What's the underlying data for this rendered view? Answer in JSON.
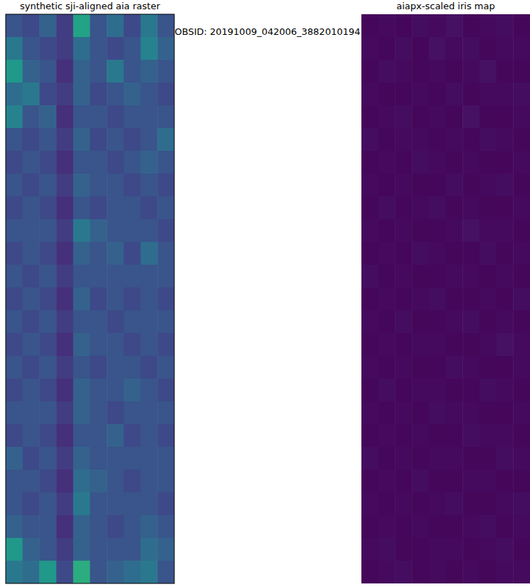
{
  "title": "OBSID: 20191009_042006_3882010194",
  "chart_data": [
    {
      "type": "heatmap",
      "title": "synthetic sji-aligned aia raster",
      "tick_labels": false,
      "color_range": [
        0,
        1
      ],
      "cells": [
        [
          0.3,
          0.25,
          0.35,
          0.2,
          0.65,
          0.3,
          0.4,
          0.25,
          0.45,
          0.3
        ],
        [
          0.45,
          0.3,
          0.25,
          0.2,
          0.4,
          0.3,
          0.25,
          0.3,
          0.5,
          0.35
        ],
        [
          0.6,
          0.35,
          0.3,
          0.15,
          0.35,
          0.3,
          0.45,
          0.3,
          0.35,
          0.3
        ],
        [
          0.4,
          0.45,
          0.25,
          0.2,
          0.35,
          0.25,
          0.3,
          0.35,
          0.3,
          0.25
        ],
        [
          0.5,
          0.3,
          0.35,
          0.15,
          0.3,
          0.3,
          0.25,
          0.3,
          0.3,
          0.3
        ],
        [
          0.3,
          0.25,
          0.3,
          0.2,
          0.35,
          0.25,
          0.3,
          0.25,
          0.3,
          0.4
        ],
        [
          0.25,
          0.3,
          0.25,
          0.15,
          0.3,
          0.3,
          0.25,
          0.3,
          0.35,
          0.3
        ],
        [
          0.3,
          0.25,
          0.3,
          0.2,
          0.35,
          0.3,
          0.3,
          0.25,
          0.3,
          0.25
        ],
        [
          0.25,
          0.3,
          0.25,
          0.15,
          0.3,
          0.25,
          0.3,
          0.3,
          0.25,
          0.3
        ],
        [
          0.3,
          0.3,
          0.3,
          0.2,
          0.45,
          0.35,
          0.3,
          0.3,
          0.3,
          0.25
        ],
        [
          0.25,
          0.3,
          0.25,
          0.15,
          0.35,
          0.3,
          0.35,
          0.25,
          0.4,
          0.3
        ],
        [
          0.3,
          0.25,
          0.3,
          0.2,
          0.3,
          0.3,
          0.3,
          0.3,
          0.3,
          0.3
        ],
        [
          0.25,
          0.3,
          0.25,
          0.15,
          0.35,
          0.25,
          0.3,
          0.25,
          0.3,
          0.25
        ],
        [
          0.3,
          0.25,
          0.3,
          0.2,
          0.3,
          0.3,
          0.25,
          0.3,
          0.3,
          0.3
        ],
        [
          0.25,
          0.3,
          0.25,
          0.15,
          0.35,
          0.3,
          0.3,
          0.25,
          0.3,
          0.25
        ],
        [
          0.3,
          0.25,
          0.3,
          0.2,
          0.3,
          0.25,
          0.3,
          0.3,
          0.25,
          0.3
        ],
        [
          0.25,
          0.3,
          0.25,
          0.15,
          0.35,
          0.3,
          0.3,
          0.35,
          0.3,
          0.25
        ],
        [
          0.3,
          0.3,
          0.3,
          0.2,
          0.35,
          0.3,
          0.25,
          0.3,
          0.3,
          0.3
        ],
        [
          0.25,
          0.3,
          0.25,
          0.15,
          0.3,
          0.3,
          0.35,
          0.25,
          0.3,
          0.25
        ],
        [
          0.35,
          0.25,
          0.3,
          0.2,
          0.35,
          0.3,
          0.3,
          0.3,
          0.3,
          0.3
        ],
        [
          0.3,
          0.3,
          0.25,
          0.15,
          0.4,
          0.35,
          0.3,
          0.25,
          0.3,
          0.3
        ],
        [
          0.3,
          0.25,
          0.3,
          0.2,
          0.45,
          0.3,
          0.3,
          0.3,
          0.3,
          0.25
        ],
        [
          0.35,
          0.3,
          0.3,
          0.15,
          0.35,
          0.3,
          0.25,
          0.3,
          0.35,
          0.3
        ],
        [
          0.6,
          0.35,
          0.3,
          0.2,
          0.35,
          0.3,
          0.3,
          0.3,
          0.4,
          0.35
        ],
        [
          0.45,
          0.4,
          0.6,
          0.25,
          0.7,
          0.3,
          0.35,
          0.4,
          0.45,
          0.3
        ]
      ]
    },
    {
      "type": "heatmap",
      "title": "aiapx-scaled iris map",
      "tick_labels": false,
      "color_range": [
        0,
        1
      ],
      "cells": [
        [
          0.02,
          0.03,
          0.02,
          0.04,
          0.03,
          0.05,
          0.02,
          0.03,
          0.04,
          0.02
        ],
        [
          0.03,
          0.02,
          0.04,
          0.02,
          0.05,
          0.03,
          0.04,
          0.02,
          0.03,
          0.03
        ],
        [
          0.02,
          0.04,
          0.03,
          0.02,
          0.03,
          0.02,
          0.03,
          0.05,
          0.02,
          0.02
        ],
        [
          0.03,
          0.02,
          0.02,
          0.03,
          0.02,
          0.04,
          0.02,
          0.03,
          0.03,
          0.04
        ],
        [
          0.02,
          0.03,
          0.04,
          0.02,
          0.03,
          0.02,
          0.05,
          0.02,
          0.02,
          0.03
        ],
        [
          0.04,
          0.02,
          0.03,
          0.03,
          0.02,
          0.03,
          0.02,
          0.04,
          0.03,
          0.02
        ],
        [
          0.02,
          0.03,
          0.02,
          0.04,
          0.03,
          0.02,
          0.03,
          0.02,
          0.02,
          0.03
        ],
        [
          0.03,
          0.02,
          0.03,
          0.02,
          0.02,
          0.04,
          0.02,
          0.03,
          0.04,
          0.02
        ],
        [
          0.02,
          0.04,
          0.02,
          0.03,
          0.04,
          0.02,
          0.03,
          0.02,
          0.02,
          0.03
        ],
        [
          0.03,
          0.02,
          0.03,
          0.02,
          0.02,
          0.03,
          0.05,
          0.03,
          0.03,
          0.02
        ],
        [
          0.02,
          0.03,
          0.02,
          0.04,
          0.03,
          0.02,
          0.02,
          0.04,
          0.02,
          0.03
        ],
        [
          0.04,
          0.02,
          0.03,
          0.02,
          0.02,
          0.03,
          0.03,
          0.02,
          0.03,
          0.02
        ],
        [
          0.02,
          0.03,
          0.02,
          0.03,
          0.04,
          0.02,
          0.02,
          0.03,
          0.02,
          0.04
        ],
        [
          0.03,
          0.02,
          0.04,
          0.02,
          0.02,
          0.03,
          0.04,
          0.02,
          0.03,
          0.02
        ],
        [
          0.02,
          0.03,
          0.02,
          0.03,
          0.03,
          0.02,
          0.02,
          0.03,
          0.05,
          0.03
        ],
        [
          0.03,
          0.02,
          0.03,
          0.02,
          0.02,
          0.04,
          0.03,
          0.02,
          0.02,
          0.03
        ],
        [
          0.02,
          0.04,
          0.02,
          0.03,
          0.03,
          0.02,
          0.02,
          0.04,
          0.03,
          0.02
        ],
        [
          0.03,
          0.02,
          0.03,
          0.02,
          0.04,
          0.03,
          0.03,
          0.02,
          0.02,
          0.03
        ],
        [
          0.02,
          0.03,
          0.02,
          0.03,
          0.02,
          0.02,
          0.04,
          0.03,
          0.03,
          0.02
        ],
        [
          0.04,
          0.02,
          0.03,
          0.02,
          0.03,
          0.03,
          0.02,
          0.02,
          0.04,
          0.03
        ],
        [
          0.02,
          0.03,
          0.02,
          0.04,
          0.02,
          0.02,
          0.03,
          0.03,
          0.02,
          0.02
        ],
        [
          0.03,
          0.02,
          0.03,
          0.02,
          0.03,
          0.04,
          0.02,
          0.02,
          0.03,
          0.04
        ],
        [
          0.02,
          0.03,
          0.02,
          0.03,
          0.02,
          0.02,
          0.03,
          0.04,
          0.02,
          0.03
        ],
        [
          0.03,
          0.04,
          0.02,
          0.02,
          0.03,
          0.03,
          0.02,
          0.03,
          0.04,
          0.02
        ],
        [
          0.02,
          0.03,
          0.04,
          0.02,
          0.03,
          0.02,
          0.03,
          0.02,
          0.03,
          0.03
        ]
      ]
    }
  ]
}
